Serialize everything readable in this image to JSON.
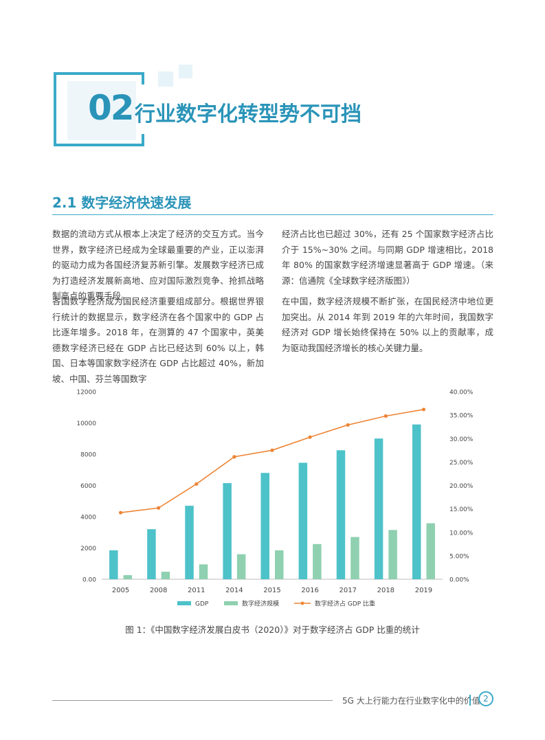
{
  "chapter": {
    "number": "02",
    "title": "行业数字化转型势不可挡"
  },
  "section": {
    "title": "2.1 数字经济快速发展"
  },
  "paragraphs": [
    "数据的流动方式从根本上决定了经济的交互方式。当今世界，数字经济已经成为全球最重要的产业，正以澎湃的驱动力成为各国经济复苏新引擎。发展数字经济已成为打造经济发展新高地、应对国际激烈竞争、抢抓战略制高点的重要手段。",
    "各国数字经济成为国民经济重要组成部分。根据世界银行统计的数据显示，数字经济在各个国家中的 GDP 占比逐年增多。2018 年，在测算的 47 个国家中，英美德数字经济已经在 GDP 占比已经达到 60% 以上，韩国、日本等国家数字经济在 GDP 占比超过 40%，新加坡、中国、芬兰等国数字",
    "经济占比也已超过 30%，还有 25 个国家数字经济占比介于 15%~30% 之间。与同期 GDP 增速相比，2018 年 80% 的国家数字经济增速显著高于 GDP 增速。（来源：信通院《全球数字经济版图》）",
    "在中国，数字经济规模不断扩张，在国民经济中地位更加突出。从 2014 年到 2019 年的六年时间，我国数字经济对 GDP 增长始终保持在 50% 以上的贡献率，成为驱动我国经济增长的核心关键力量。"
  ],
  "chart_data": {
    "type": "bar",
    "categories": [
      "2005",
      "2008",
      "2011",
      "2014",
      "2015",
      "2016",
      "2017",
      "2018",
      "2019"
    ],
    "series": [
      {
        "name": "GDP",
        "kind": "bar",
        "axis": "left",
        "color": "#4dc2c9",
        "values": [
          1850,
          3200,
          4700,
          6150,
          6800,
          7450,
          8250,
          9000,
          9900
        ]
      },
      {
        "name": "数字经济规模",
        "kind": "bar",
        "axis": "left",
        "color": "#8fd0b0",
        "values": [
          260,
          480,
          950,
          1600,
          1850,
          2250,
          2700,
          3150,
          3580
        ]
      },
      {
        "name": "数字经济占 GDP 比重",
        "kind": "line",
        "axis": "right",
        "color": "#ee8434",
        "values": [
          14.2,
          15.2,
          20.3,
          26.1,
          27.5,
          30.3,
          32.9,
          34.8,
          36.2
        ]
      }
    ],
    "ylim": [
      0,
      12000
    ],
    "yticks": [
      "0.00",
      "2000",
      "4000",
      "6000",
      "8000",
      "10000",
      "12000"
    ],
    "y2lim": [
      0,
      40
    ],
    "y2ticks": [
      "0.00%",
      "5.00%",
      "10.00%",
      "15.00%",
      "20.00%",
      "25.00%",
      "30.00%",
      "35.00%",
      "40.00%"
    ],
    "grid": false,
    "legend": "bottom"
  },
  "caption": "图 1：《中国数字经济发展白皮书（2020）》对于数字经济占 GDP 比重的统计",
  "footer": {
    "text": "5G 大上行能力在行业数字化中的价值",
    "page": "2"
  }
}
